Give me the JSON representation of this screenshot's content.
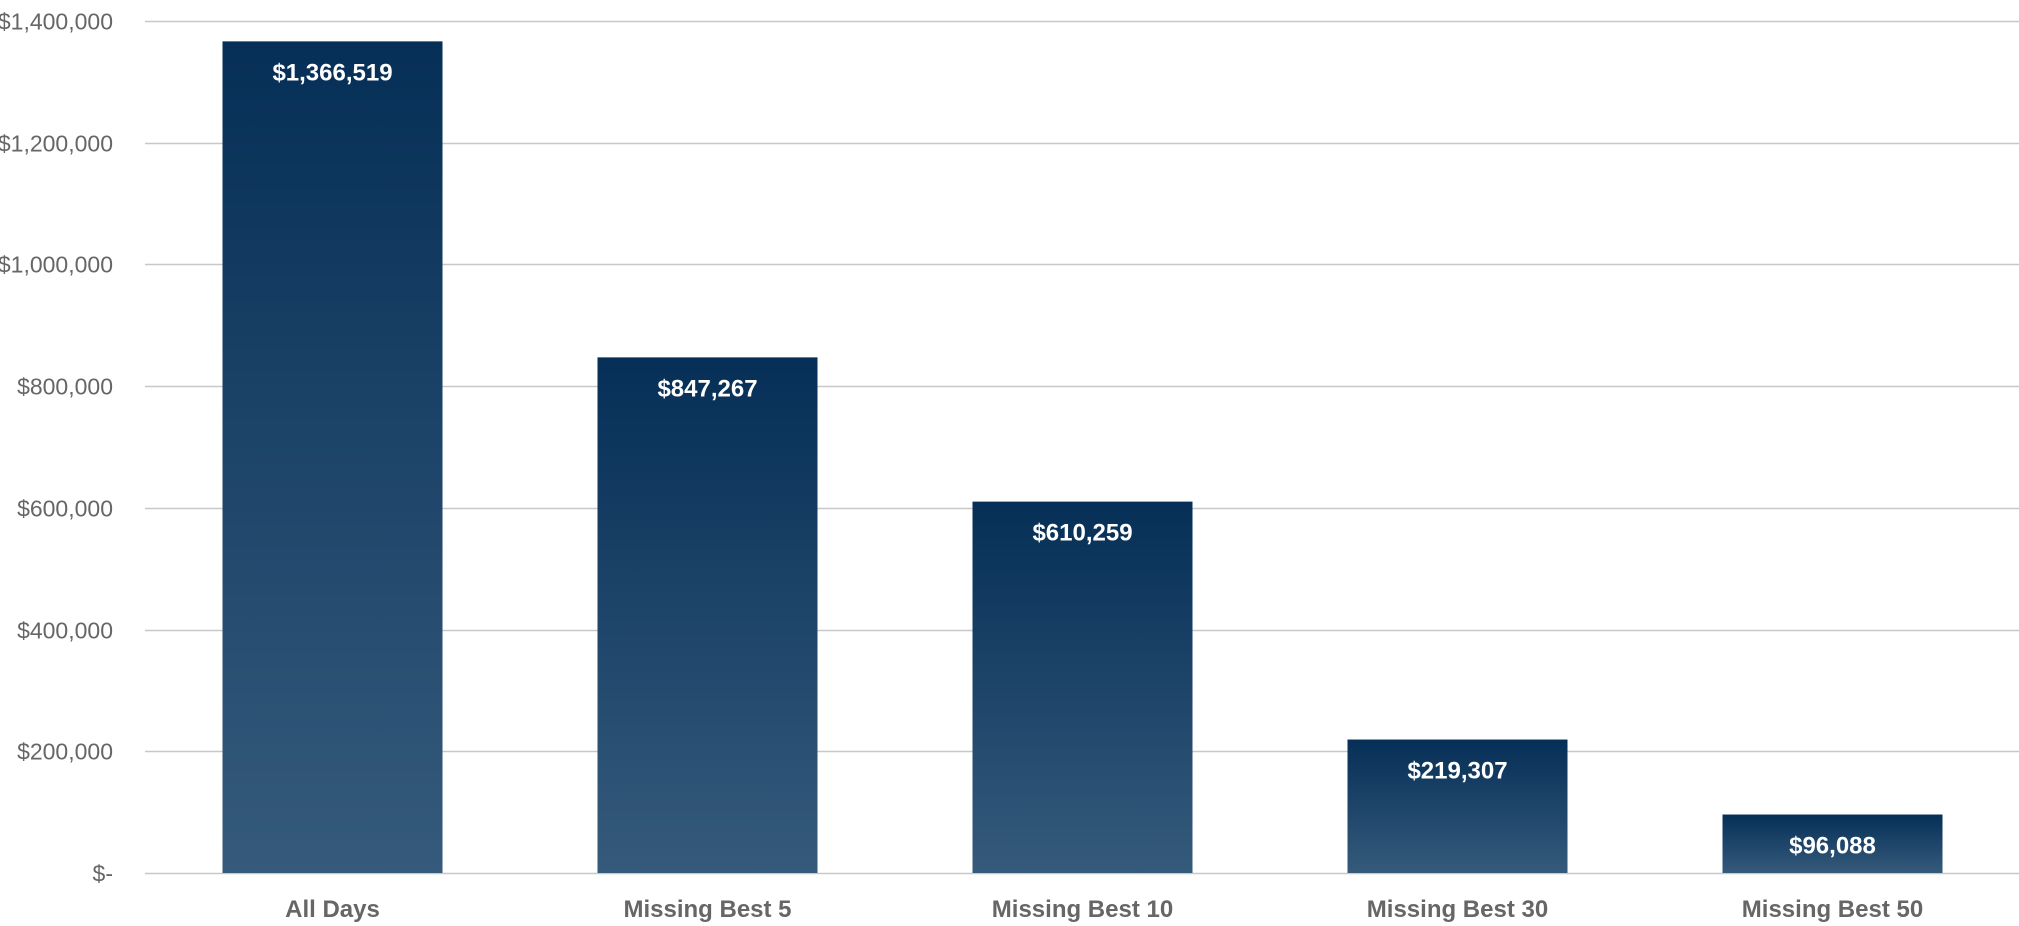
{
  "chart_data": {
    "type": "bar",
    "categories": [
      "All Days",
      "Missing Best 5",
      "Missing Best 10",
      "Missing Best 30",
      "Missing Best 50"
    ],
    "values": [
      1366519,
      847267,
      610259,
      219307,
      96088
    ],
    "data_labels": [
      "$1,366,519",
      "$847,267",
      "$610,259",
      "$219,307",
      "$96,088"
    ],
    "title": "",
    "xlabel": "",
    "ylabel": "",
    "ylim": [
      0,
      1400000
    ],
    "y_ticks": [
      0,
      200000,
      400000,
      600000,
      800000,
      1000000,
      1200000,
      1400000
    ],
    "y_tick_labels": [
      "$-",
      "$200,000",
      "$400,000",
      "$600,000",
      "$800,000",
      "$1,000,000",
      "$1,200,000",
      "$1,400,000"
    ],
    "grid": true,
    "legend": "none",
    "colors": {
      "bar_top": "#062f57",
      "bar_bottom": "#355a7b",
      "grid": "#c8c8c8",
      "tick_text": "#666666",
      "data_label_text": "#ffffff"
    }
  }
}
